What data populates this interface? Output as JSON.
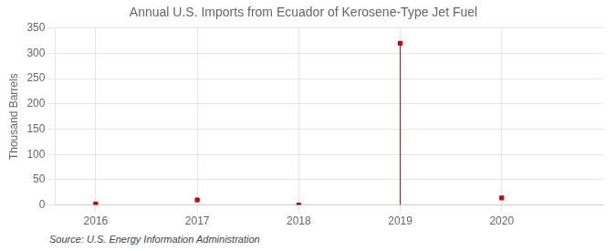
{
  "chart_data": {
    "type": "scatter",
    "title": "Annual U.S. Imports from Ecuador of Kerosene-Type Jet Fuel",
    "ylabel": "Thousand Barrels",
    "annotation": "Source: U.S. Energy Information Administration",
    "series": [
      {
        "type": "scatter",
        "marker": "square",
        "color": "#cc0000",
        "x": [
          2016,
          2017,
          2018,
          2019,
          2020
        ],
        "values": [
          2,
          10,
          0,
          320,
          14
        ]
      },
      {
        "type": "stem",
        "color": "#cc0000",
        "x": [
          2019
        ],
        "values": [
          320
        ]
      }
    ],
    "xlim": [
      2015.6,
      2021.0
    ],
    "xticks": [
      2016,
      2017,
      2018,
      2019,
      2020
    ],
    "ylim": [
      0,
      350
    ],
    "yticks": [
      0,
      50,
      100,
      150,
      200,
      250,
      300,
      350
    ],
    "grid": true
  }
}
